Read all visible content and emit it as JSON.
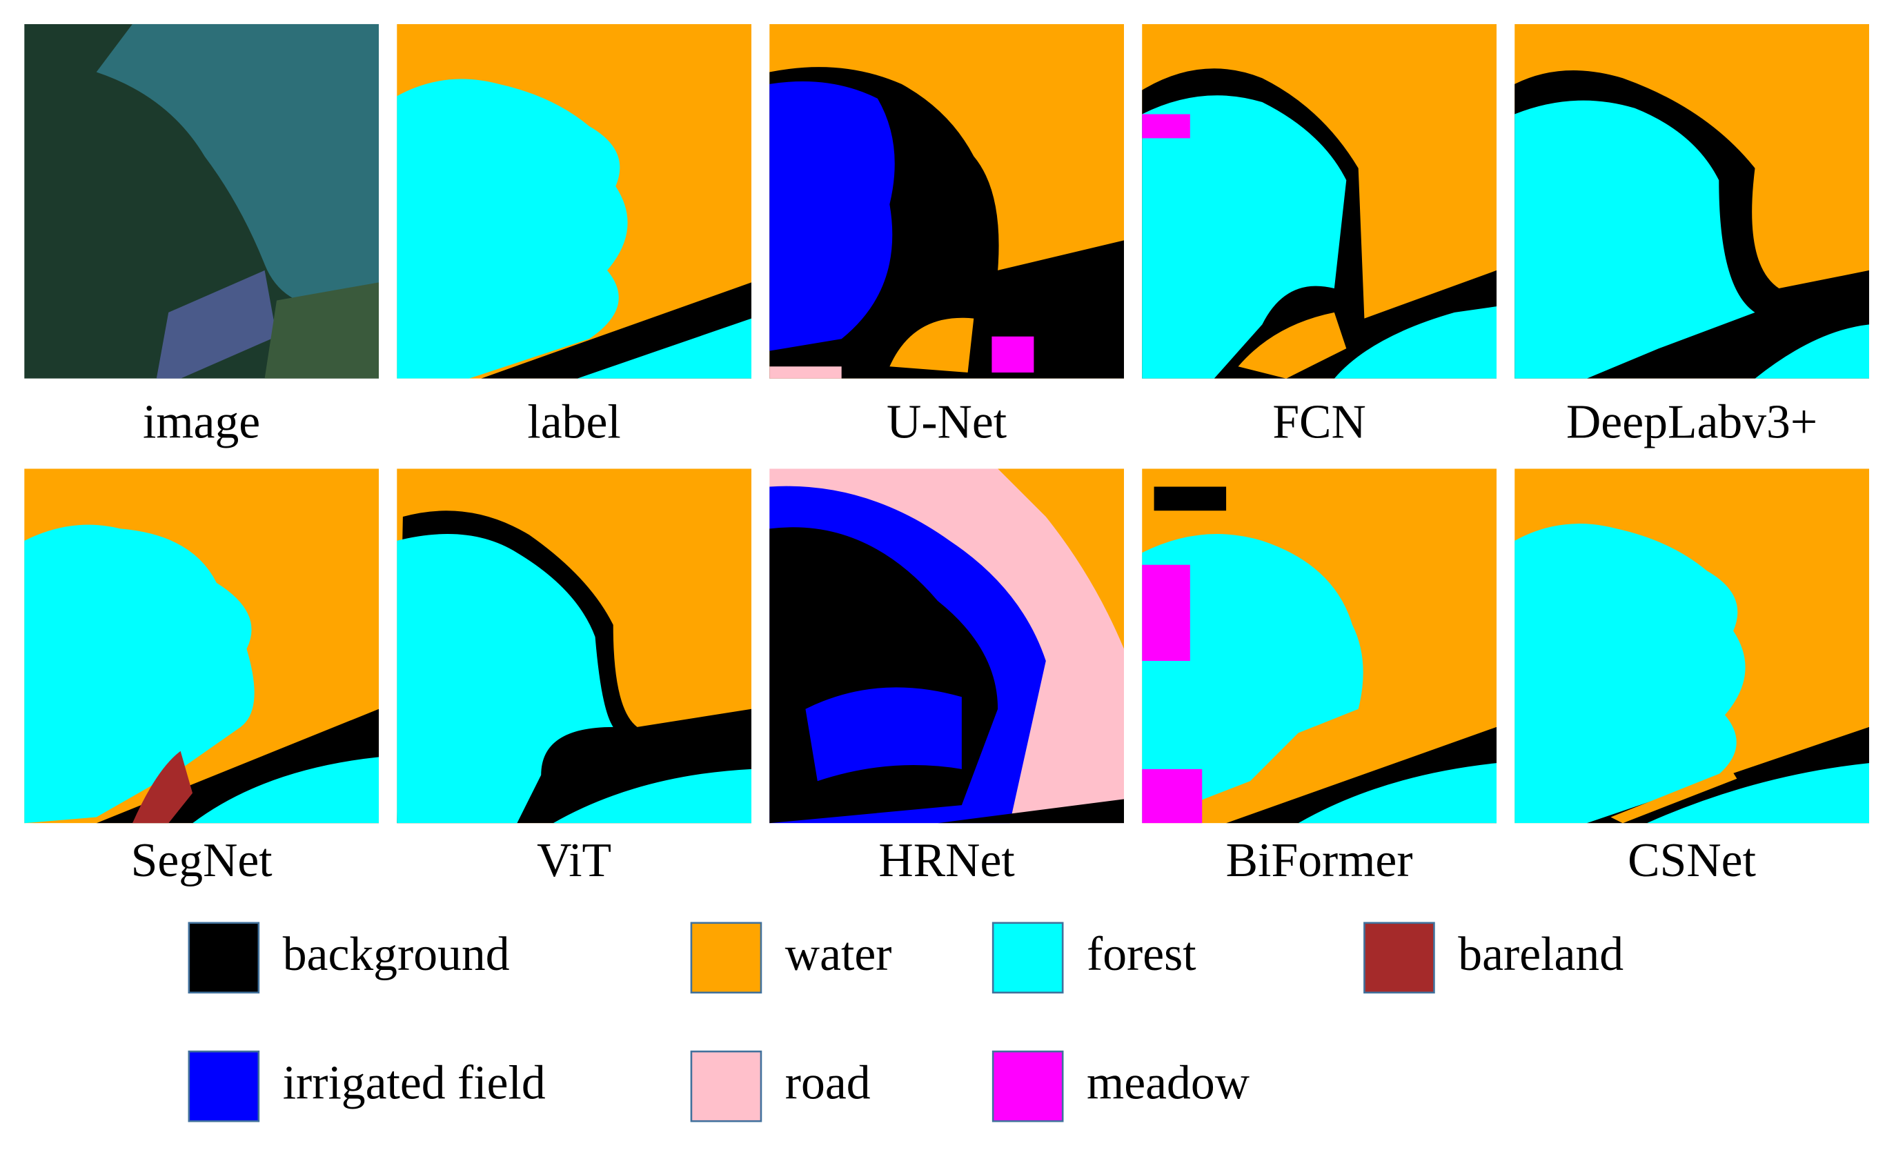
{
  "panels": [
    {
      "label": "image"
    },
    {
      "label": "label"
    },
    {
      "label": "U-Net"
    },
    {
      "label": "FCN"
    },
    {
      "label": "DeepLabv3+"
    },
    {
      "label": "SegNet"
    },
    {
      "label": "ViT"
    },
    {
      "label": "HRNet"
    },
    {
      "label": "BiFormer"
    },
    {
      "label": "CSNet"
    }
  ],
  "legend": [
    {
      "name": "background",
      "color": "#000000"
    },
    {
      "name": "water",
      "color": "#FFA500"
    },
    {
      "name": "forest",
      "color": "#00FFFF"
    },
    {
      "name": "bareland",
      "color": "#A52A2A"
    },
    {
      "name": "irrigated  field",
      "color": "#0000FF"
    },
    {
      "name": "road",
      "color": "#FFC0CB"
    },
    {
      "name": "meadow",
      "color": "#FF00FF"
    }
  ]
}
